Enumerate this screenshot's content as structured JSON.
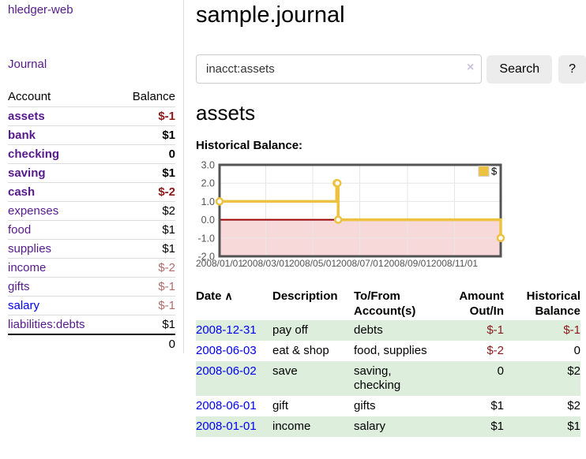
{
  "app": {
    "brand": "hledger-web",
    "nav_journal": "Journal"
  },
  "sidebar": {
    "accounts_table": {
      "headers": {
        "account": "Account",
        "balance": "Balance"
      },
      "rows": [
        {
          "account": "assets",
          "balance": "$-1",
          "depth": 1,
          "bold": true
        },
        {
          "account": "bank",
          "balance": "$1",
          "depth": 2,
          "bold": true
        },
        {
          "account": "checking",
          "balance": "0",
          "depth": 3,
          "bold": true
        },
        {
          "account": "saving",
          "balance": "$1",
          "depth": 3,
          "bold": true
        },
        {
          "account": "cash",
          "balance": "$-2",
          "depth": 2,
          "bold": true
        },
        {
          "account": "expenses",
          "balance": "$2",
          "depth": 1,
          "bold": false
        },
        {
          "account": "food",
          "balance": "$1",
          "depth": 2,
          "bold": false
        },
        {
          "account": "supplies",
          "balance": "$1",
          "depth": 2,
          "bold": false
        },
        {
          "account": "income",
          "balance": "$-2",
          "depth": 1,
          "bold": false
        },
        {
          "account": "gifts",
          "balance": "$-1",
          "depth": 2,
          "bold": false
        },
        {
          "account": "salary",
          "balance": "$-1",
          "depth": 2,
          "bold": false,
          "unvisited": true
        },
        {
          "account": "liabilities:debts",
          "balance": "$1",
          "depth": 1,
          "bold": false
        }
      ],
      "total": "0"
    }
  },
  "header": {
    "title": "sample.journal"
  },
  "search": {
    "value": "inacct:assets",
    "clear_icon": "×",
    "button_label": "Search",
    "help_label": "?"
  },
  "account_page": {
    "title": "assets",
    "chart_label": "Historical Balance:"
  },
  "chart_data": {
    "type": "line",
    "title": "Historical Balance",
    "step": true,
    "series": [
      {
        "name": "$",
        "color": "#edc240",
        "points": [
          [
            "2008-01-01",
            1
          ],
          [
            "2008-06-01",
            2
          ],
          [
            "2008-06-02",
            2
          ],
          [
            "2008-06-03",
            0
          ],
          [
            "2008-12-31",
            -1
          ]
        ]
      }
    ],
    "xlim": [
      "2008-01-01",
      "2008-12-31"
    ],
    "ylim": [
      -2,
      3
    ],
    "y_ticks": [
      "3.0",
      "2.0",
      "1.0",
      "0.0",
      "-1.0",
      "-2.0"
    ],
    "x_ticks": [
      "2008/01/01",
      "2008/03/01",
      "2008/05/01",
      "2008/07/01",
      "2008/09/01",
      "2008/11/01"
    ],
    "grid": true,
    "legend_position": "top-right",
    "colors": {
      "negative_region_fill": "#f8d9da",
      "zero_line": "#990000",
      "grid_line": "#e6e6e6",
      "plot_border": "#545454",
      "tick_text": "#545454"
    }
  },
  "register_table": {
    "headers": [
      "Date",
      "Description",
      "To/From Account(s)",
      "Amount Out/In",
      "Historical Balance"
    ],
    "sort_indicator": "∧",
    "rows": [
      {
        "date": "2008-12-31",
        "description": "pay off",
        "accounts": "debts",
        "amount": "$-1",
        "balance": "$-1"
      },
      {
        "date": "2008-06-03",
        "description": "eat & shop",
        "accounts": "food, supplies",
        "amount": "$-2",
        "balance": "0"
      },
      {
        "date": "2008-06-02",
        "description": "save",
        "accounts": "saving, checking",
        "amount": "0",
        "balance": "$2"
      },
      {
        "date": "2008-06-01",
        "description": "gift",
        "accounts": "gifts",
        "amount": "$1",
        "balance": "$2"
      },
      {
        "date": "2008-01-01",
        "description": "income",
        "accounts": "salary",
        "amount": "$1",
        "balance": "$1"
      }
    ]
  }
}
